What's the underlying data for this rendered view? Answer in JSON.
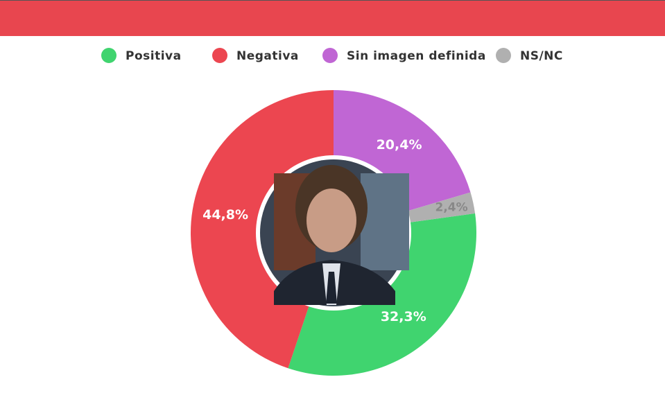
{
  "chart_data": {
    "type": "donut",
    "series": [
      {
        "name": "Positiva",
        "color": "#40d46f",
        "values": [
          32.3
        ],
        "value_labels": [
          "32,3%"
        ]
      },
      {
        "name": "Negativa",
        "color": "#ec4650",
        "values": [
          44.8
        ],
        "value_labels": [
          "44,8%"
        ]
      },
      {
        "name": "Sin imagen definida",
        "color": "#c066d4",
        "values": [
          20.4
        ],
        "value_labels": [
          "20,4%"
        ]
      },
      {
        "name": "NS/NC",
        "color": "#b0b0b0",
        "values": [
          2.4
        ],
        "value_labels": [
          "2,4%"
        ]
      }
    ],
    "legend": "top"
  }
}
